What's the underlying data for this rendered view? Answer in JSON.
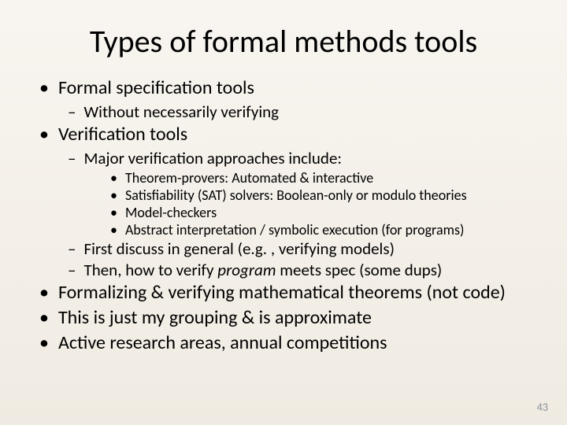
{
  "slide": {
    "title": "Types of formal methods tools",
    "page_number": "43",
    "background_gradient_top": "#f8f5f0",
    "background_gradient_bottom": "#f0ebe2",
    "title_fontsize": 40,
    "l1_fontsize": 24,
    "l2_fontsize": 21,
    "l3_fontsize": 18,
    "text_color": "#000000",
    "pagenum_color": "#8a9299"
  },
  "b1": {
    "text": "Formal specification tools",
    "sub1": "Without necessarily verifying"
  },
  "b2": {
    "text": "Verification tools",
    "sub1": "Major verification approaches include:",
    "sub1_items": {
      "a": "Theorem-provers: Automated & interactive",
      "b": "Satisfiability (SAT) solvers: Boolean-only or modulo theories",
      "c": "Model-checkers",
      "d": "Abstract interpretation / symbolic execution (for programs)"
    },
    "sub2_prefix": "First discuss in general (e.g.",
    "sub2_suffix": ", verifying models)",
    "sub3_prefix": "Then, how to verify ",
    "sub3_italic": "program ",
    "sub3_suffix": "meets spec (some dups)"
  },
  "b3": "Formalizing & verifying mathematical theorems (not code)",
  "b4": "This is just my grouping & is approximate",
  "b5": "Active research areas, annual competitions"
}
